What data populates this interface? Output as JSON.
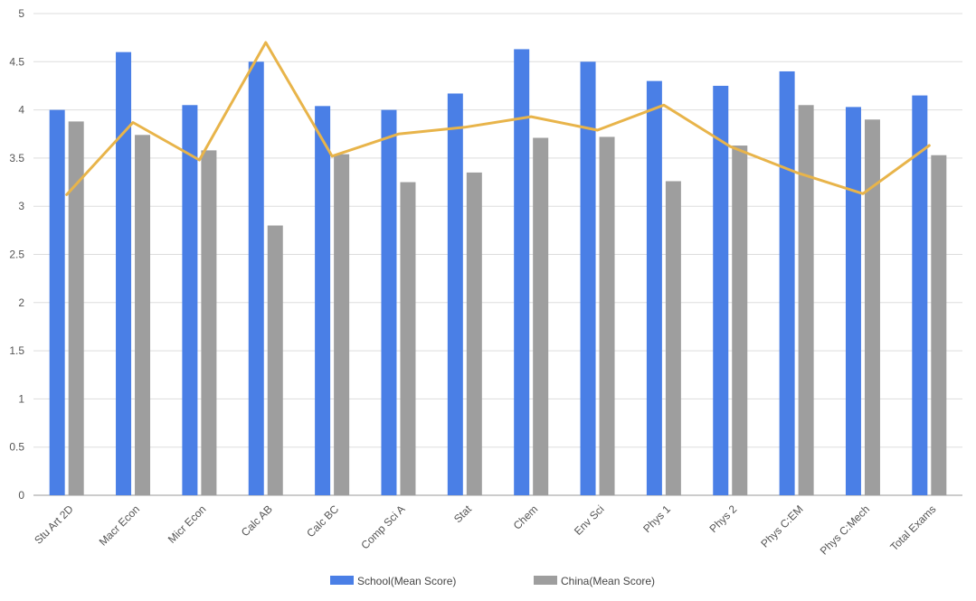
{
  "chart_data": {
    "type": "bar",
    "title": "",
    "xlabel": "",
    "ylabel": "",
    "ylim": [
      0,
      5
    ],
    "y_ticks": [
      "0",
      "0.5",
      "1",
      "1.5",
      "2",
      "2.5",
      "3",
      "3.5",
      "4",
      "4.5",
      "5"
    ],
    "grid": true,
    "legend_position": "bottom",
    "categories": [
      "Stu Art 2D",
      "Macr Econ",
      "Micr Econ",
      "Calc AB",
      "Calc BC",
      "Comp Sci A",
      "Stat",
      "Chem",
      "Env Sci",
      "Phys 1",
      "Phys 2",
      "Phys C:EM",
      "Phys C:Mech",
      "Total Exams"
    ],
    "series": [
      {
        "name": "School(Mean Score)",
        "kind": "bar",
        "color": "#4a7fe6",
        "values": [
          4.0,
          4.6,
          4.05,
          4.5,
          4.04,
          4.0,
          4.17,
          4.63,
          4.5,
          4.3,
          4.25,
          4.4,
          4.03,
          4.15
        ]
      },
      {
        "name": "China(Mean Score)",
        "kind": "bar",
        "color": "#9e9e9e",
        "values": [
          3.88,
          3.74,
          3.58,
          2.8,
          3.54,
          3.25,
          3.35,
          3.71,
          3.72,
          3.26,
          3.63,
          4.05,
          3.9,
          3.53
        ]
      },
      {
        "kind": "line",
        "color": "#e8b44a",
        "values": [
          3.12,
          3.87,
          3.48,
          4.7,
          3.52,
          3.75,
          3.82,
          3.93,
          3.79,
          4.05,
          3.62,
          3.35,
          3.13,
          3.63
        ]
      }
    ]
  }
}
